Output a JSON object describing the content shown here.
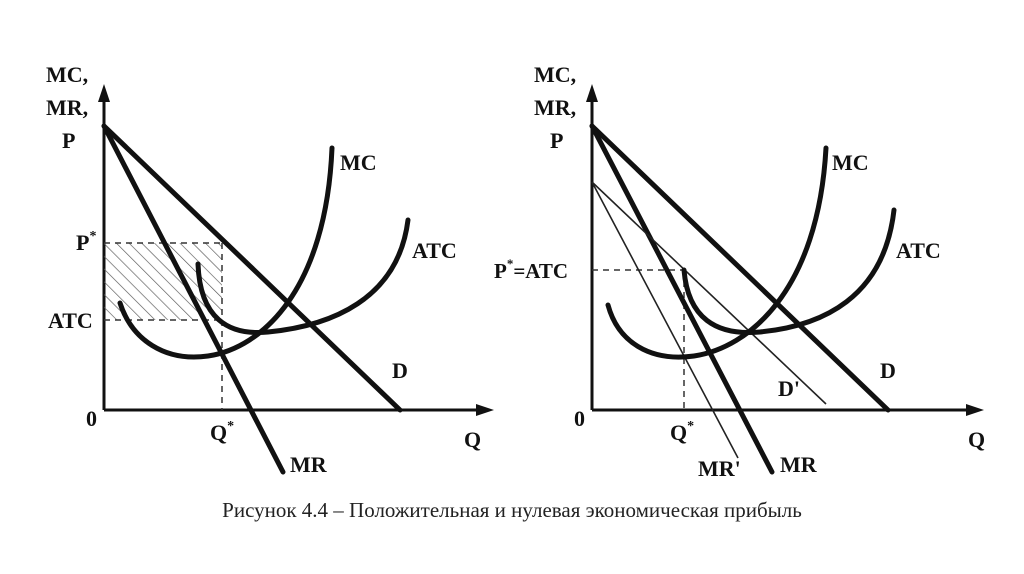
{
  "left_graph": {
    "y_axis_label": [
      "MC,",
      "MR,",
      "P"
    ],
    "x_axis_label": "Q",
    "origin_label": "0",
    "p_star_label": "P",
    "p_star_sup": "*",
    "atc_label": "ATC",
    "q_star_label": "Q",
    "q_star_sup": "*",
    "mc_label": "MC",
    "atc_curve_label": "ATC",
    "d_label": "D",
    "mr_label": "MR"
  },
  "right_graph": {
    "y_axis_label": [
      "MC,",
      "MR,",
      "P"
    ],
    "x_axis_label": "Q",
    "origin_label": "0",
    "p_star_atc_label_p": "P",
    "p_star_atc_sup": "*",
    "p_star_atc_label_rest": "=ATC",
    "q_star_label": "Q",
    "q_star_sup": "*",
    "mc_label": "MC",
    "atc_curve_label": "ATC",
    "d_label": "D",
    "d_prime_label": "D'",
    "mr_label": "MR",
    "mr_prime_label": "MR'"
  },
  "caption": "Рисунок 4.4 – Положительная и нулевая экономическая прибыль"
}
